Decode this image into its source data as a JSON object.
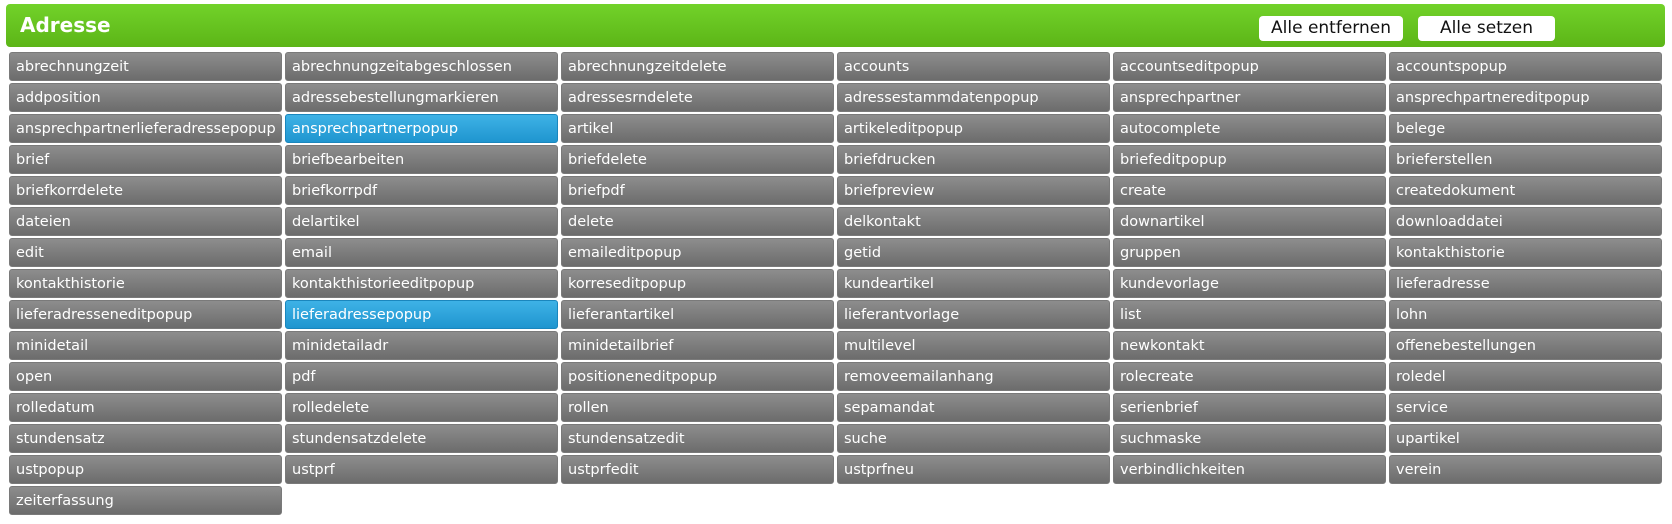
{
  "header": {
    "title": "Adresse",
    "remove_all_label": "Alle entfernen",
    "set_all_label": "Alle setzen",
    "color": "#66c420"
  },
  "selected_color": "#33aadd",
  "items": [
    {
      "label": "abrechnungzeit",
      "selected": false
    },
    {
      "label": "abrechnungzeitabgeschlossen",
      "selected": false
    },
    {
      "label": "abrechnungzeitdelete",
      "selected": false
    },
    {
      "label": "accounts",
      "selected": false
    },
    {
      "label": "accountseditpopup",
      "selected": false
    },
    {
      "label": "accountspopup",
      "selected": false
    },
    {
      "label": "addposition",
      "selected": false
    },
    {
      "label": "adressebestellungmarkieren",
      "selected": false
    },
    {
      "label": "adressesrndelete",
      "selected": false
    },
    {
      "label": "adressestammdatenpopup",
      "selected": false
    },
    {
      "label": "ansprechpartner",
      "selected": false
    },
    {
      "label": "ansprechpartnereditpopup",
      "selected": false
    },
    {
      "label": "ansprechpartnerlieferadressepopup",
      "selected": false
    },
    {
      "label": "ansprechpartnerpopup",
      "selected": true
    },
    {
      "label": "artikel",
      "selected": false
    },
    {
      "label": "artikeleditpopup",
      "selected": false
    },
    {
      "label": "autocomplete",
      "selected": false
    },
    {
      "label": "belege",
      "selected": false
    },
    {
      "label": "brief",
      "selected": false
    },
    {
      "label": "briefbearbeiten",
      "selected": false
    },
    {
      "label": "briefdelete",
      "selected": false
    },
    {
      "label": "briefdrucken",
      "selected": false
    },
    {
      "label": "briefeditpopup",
      "selected": false
    },
    {
      "label": "brieferstellen",
      "selected": false
    },
    {
      "label": "briefkorrdelete",
      "selected": false
    },
    {
      "label": "briefkorrpdf",
      "selected": false
    },
    {
      "label": "briefpdf",
      "selected": false
    },
    {
      "label": "briefpreview",
      "selected": false
    },
    {
      "label": "create",
      "selected": false
    },
    {
      "label": "createdokument",
      "selected": false
    },
    {
      "label": "dateien",
      "selected": false
    },
    {
      "label": "delartikel",
      "selected": false
    },
    {
      "label": "delete",
      "selected": false
    },
    {
      "label": "delkontakt",
      "selected": false
    },
    {
      "label": "downartikel",
      "selected": false
    },
    {
      "label": "downloaddatei",
      "selected": false
    },
    {
      "label": "edit",
      "selected": false
    },
    {
      "label": "email",
      "selected": false
    },
    {
      "label": "emaileditpopup",
      "selected": false
    },
    {
      "label": "getid",
      "selected": false
    },
    {
      "label": "gruppen",
      "selected": false
    },
    {
      "label": "kontakthistorie",
      "selected": false
    },
    {
      "label": "kontakthistorie",
      "selected": false
    },
    {
      "label": "kontakthistorieeditpopup",
      "selected": false
    },
    {
      "label": "korreseditpopup",
      "selected": false
    },
    {
      "label": "kundeartikel",
      "selected": false
    },
    {
      "label": "kundevorlage",
      "selected": false
    },
    {
      "label": "lieferadresse",
      "selected": false
    },
    {
      "label": "lieferadresseneditpopup",
      "selected": false
    },
    {
      "label": "lieferadressepopup",
      "selected": true
    },
    {
      "label": "lieferantartikel",
      "selected": false
    },
    {
      "label": "lieferantvorlage",
      "selected": false
    },
    {
      "label": "list",
      "selected": false
    },
    {
      "label": "lohn",
      "selected": false
    },
    {
      "label": "minidetail",
      "selected": false
    },
    {
      "label": "minidetailadr",
      "selected": false
    },
    {
      "label": "minidetailbrief",
      "selected": false
    },
    {
      "label": "multilevel",
      "selected": false
    },
    {
      "label": "newkontakt",
      "selected": false
    },
    {
      "label": "offenebestellungen",
      "selected": false
    },
    {
      "label": "open",
      "selected": false
    },
    {
      "label": "pdf",
      "selected": false
    },
    {
      "label": "positioneneditpopup",
      "selected": false
    },
    {
      "label": "removeemailanhang",
      "selected": false
    },
    {
      "label": "rolecreate",
      "selected": false
    },
    {
      "label": "roledel",
      "selected": false
    },
    {
      "label": "rolledatum",
      "selected": false
    },
    {
      "label": "rolledelete",
      "selected": false
    },
    {
      "label": "rollen",
      "selected": false
    },
    {
      "label": "sepamandat",
      "selected": false
    },
    {
      "label": "serienbrief",
      "selected": false
    },
    {
      "label": "service",
      "selected": false
    },
    {
      "label": "stundensatz",
      "selected": false
    },
    {
      "label": "stundensatzdelete",
      "selected": false
    },
    {
      "label": "stundensatzedit",
      "selected": false
    },
    {
      "label": "suche",
      "selected": false
    },
    {
      "label": "suchmaske",
      "selected": false
    },
    {
      "label": "upartikel",
      "selected": false
    },
    {
      "label": "ustpopup",
      "selected": false
    },
    {
      "label": "ustprf",
      "selected": false
    },
    {
      "label": "ustprfedit",
      "selected": false
    },
    {
      "label": "ustprfneu",
      "selected": false
    },
    {
      "label": "verbindlichkeiten",
      "selected": false
    },
    {
      "label": "verein",
      "selected": false
    },
    {
      "label": "zeiterfassung",
      "selected": false
    }
  ]
}
